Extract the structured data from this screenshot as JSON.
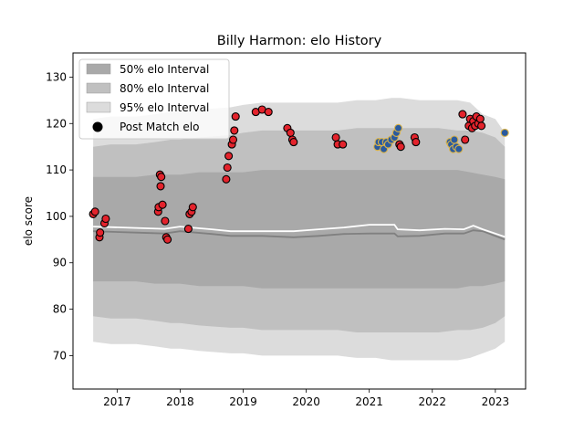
{
  "chart_data": {
    "type": "scatter",
    "title": "Billy Harmon: elo History",
    "xlabel": "",
    "ylabel": "elo score",
    "xlim": [
      2016.3,
      2023.48
    ],
    "ylim": [
      62.8,
      135.2
    ],
    "xticks": [
      2017,
      2018,
      2019,
      2020,
      2021,
      2022,
      2023
    ],
    "yticks": [
      70,
      80,
      90,
      100,
      110,
      120,
      130
    ],
    "grid": false,
    "legend_position": "upper left",
    "legend": [
      {
        "label": "50% elo Interval",
        "kind": "band",
        "color": "#a9a9a9"
      },
      {
        "label": "80% elo Interval",
        "kind": "band",
        "color": "#c0c0c0"
      },
      {
        "label": "95% elo Interval",
        "kind": "band",
        "color": "#dcdcdc"
      },
      {
        "label": "Post Match elo",
        "kind": "marker",
        "color": "#000000"
      }
    ],
    "colors": {
      "band50": "#a9a9a9",
      "band80": "#c0c0c0",
      "band95": "#dcdcdc",
      "median_line": "#808080",
      "mean_line": "#ffffff",
      "win": "#e3232c",
      "loss": "#2a5a9e",
      "win_edge": "#000000",
      "loss_edge": "#d8b24a"
    },
    "bands": {
      "x": [
        2016.62,
        2016.9,
        2017.3,
        2017.6,
        2017.85,
        2018.0,
        2018.3,
        2018.8,
        2019.0,
        2019.3,
        2019.7,
        2020.0,
        2020.5,
        2020.8,
        2021.1,
        2021.35,
        2021.5,
        2021.8,
        2022.1,
        2022.4,
        2022.6,
        2022.8,
        2023.0,
        2023.15
      ],
      "lo95": [
        73,
        72.5,
        72.5,
        72,
        71.5,
        71.5,
        71,
        70.5,
        70.5,
        70,
        70,
        70,
        70,
        69.5,
        69.5,
        69,
        69,
        69,
        69,
        69,
        69.5,
        70.5,
        71.5,
        73
      ],
      "hi95": [
        121,
        121.5,
        121.5,
        122,
        122.5,
        122.5,
        123,
        123.5,
        124,
        124.5,
        124.5,
        124.5,
        124.5,
        125,
        125,
        125.5,
        125.5,
        125,
        125,
        125,
        124.5,
        122,
        121,
        118
      ],
      "lo80": [
        78.5,
        78,
        78,
        77.5,
        77,
        77,
        76.5,
        76,
        76,
        75.5,
        75.5,
        75.5,
        75.5,
        75,
        75,
        75,
        75,
        75,
        75,
        75.5,
        75.5,
        76,
        77,
        78.5
      ],
      "hi80": [
        115,
        115.5,
        115.5,
        116,
        116.5,
        116.5,
        117,
        117.5,
        118,
        118.5,
        118.5,
        118.5,
        118.5,
        119,
        119,
        119,
        119,
        119,
        119,
        118.5,
        118.5,
        118,
        117,
        115
      ],
      "lo50": [
        86,
        86,
        86,
        85.5,
        85.5,
        85.5,
        85,
        85,
        85,
        84.5,
        84.5,
        84.5,
        84.5,
        84.5,
        84.5,
        84.5,
        84.5,
        84.5,
        84.5,
        84.5,
        85,
        85,
        85.5,
        86
      ],
      "hi50": [
        108.5,
        108.5,
        108.5,
        109,
        109,
        109,
        109.5,
        109.5,
        109.5,
        110,
        110,
        110,
        110,
        110,
        110,
        110,
        110,
        110,
        110,
        110,
        109.5,
        109,
        108.5,
        108
      ]
    },
    "median_line": {
      "x": [
        2016.62,
        2017.3,
        2017.75,
        2018.0,
        2018.5,
        2018.8,
        2019.3,
        2019.8,
        2020.2,
        2020.6,
        2021.0,
        2021.4,
        2021.45,
        2021.8,
        2022.2,
        2022.5,
        2022.65,
        2022.8,
        2023.15
      ],
      "y": [
        96.8,
        96.5,
        96.3,
        96.8,
        96.2,
        95.8,
        95.8,
        95.5,
        95.8,
        96.2,
        96.3,
        96.3,
        95.7,
        95.8,
        96.3,
        96.3,
        97.0,
        96.8,
        95.0
      ]
    },
    "mean_line": {
      "x": [
        2016.62,
        2017.3,
        2017.75,
        2018.0,
        2018.5,
        2018.8,
        2019.3,
        2019.8,
        2020.2,
        2020.6,
        2021.0,
        2021.4,
        2021.45,
        2021.8,
        2022.2,
        2022.5,
        2022.65,
        2022.8,
        2023.15
      ],
      "y": [
        97.8,
        97.5,
        97.3,
        97.8,
        97.2,
        96.8,
        96.8,
        96.8,
        97.2,
        97.6,
        98.2,
        98.2,
        97.2,
        97.0,
        97.3,
        97.2,
        98.0,
        97.2,
        95.6
      ]
    },
    "points": [
      {
        "x": 2016.62,
        "y": 100.5,
        "result": "win"
      },
      {
        "x": 2016.65,
        "y": 101.0,
        "result": "win"
      },
      {
        "x": 2016.72,
        "y": 95.5,
        "result": "win"
      },
      {
        "x": 2016.73,
        "y": 96.5,
        "result": "win"
      },
      {
        "x": 2016.8,
        "y": 98.5,
        "result": "win"
      },
      {
        "x": 2016.82,
        "y": 99.5,
        "result": "win"
      },
      {
        "x": 2017.65,
        "y": 101.0,
        "result": "win"
      },
      {
        "x": 2017.66,
        "y": 102.0,
        "result": "win"
      },
      {
        "x": 2017.68,
        "y": 109.0,
        "result": "win"
      },
      {
        "x": 2017.69,
        "y": 106.5,
        "result": "win"
      },
      {
        "x": 2017.7,
        "y": 108.5,
        "result": "win"
      },
      {
        "x": 2017.72,
        "y": 102.5,
        "result": "win"
      },
      {
        "x": 2017.76,
        "y": 99.0,
        "result": "win"
      },
      {
        "x": 2017.78,
        "y": 95.5,
        "result": "win"
      },
      {
        "x": 2017.8,
        "y": 95.0,
        "result": "win"
      },
      {
        "x": 2018.13,
        "y": 97.3,
        "result": "win"
      },
      {
        "x": 2018.15,
        "y": 100.5,
        "result": "win"
      },
      {
        "x": 2018.18,
        "y": 101.0,
        "result": "win"
      },
      {
        "x": 2018.2,
        "y": 102.0,
        "result": "win"
      },
      {
        "x": 2018.73,
        "y": 108.0,
        "result": "win"
      },
      {
        "x": 2018.75,
        "y": 110.5,
        "result": "win"
      },
      {
        "x": 2018.77,
        "y": 113.0,
        "result": "win"
      },
      {
        "x": 2018.82,
        "y": 115.5,
        "result": "win"
      },
      {
        "x": 2018.84,
        "y": 116.5,
        "result": "win"
      },
      {
        "x": 2018.86,
        "y": 118.5,
        "result": "win"
      },
      {
        "x": 2018.88,
        "y": 121.5,
        "result": "win"
      },
      {
        "x": 2019.2,
        "y": 122.5,
        "result": "win"
      },
      {
        "x": 2019.3,
        "y": 123.0,
        "result": "win"
      },
      {
        "x": 2019.4,
        "y": 122.5,
        "result": "win"
      },
      {
        "x": 2019.7,
        "y": 119.0,
        "result": "win"
      },
      {
        "x": 2019.75,
        "y": 118.0,
        "result": "win"
      },
      {
        "x": 2019.78,
        "y": 116.5,
        "result": "win"
      },
      {
        "x": 2019.8,
        "y": 116.0,
        "result": "win"
      },
      {
        "x": 2020.47,
        "y": 117.0,
        "result": "win"
      },
      {
        "x": 2020.5,
        "y": 115.5,
        "result": "win"
      },
      {
        "x": 2020.58,
        "y": 115.5,
        "result": "win"
      },
      {
        "x": 2021.13,
        "y": 115.0,
        "result": "loss"
      },
      {
        "x": 2021.15,
        "y": 116.0,
        "result": "loss"
      },
      {
        "x": 2021.2,
        "y": 116.0,
        "result": "loss"
      },
      {
        "x": 2021.23,
        "y": 114.5,
        "result": "loss"
      },
      {
        "x": 2021.27,
        "y": 116.0,
        "result": "loss"
      },
      {
        "x": 2021.3,
        "y": 115.5,
        "result": "loss"
      },
      {
        "x": 2021.35,
        "y": 116.5,
        "result": "loss"
      },
      {
        "x": 2021.4,
        "y": 117.0,
        "result": "loss"
      },
      {
        "x": 2021.43,
        "y": 118.0,
        "result": "loss"
      },
      {
        "x": 2021.46,
        "y": 119.0,
        "result": "loss"
      },
      {
        "x": 2021.48,
        "y": 115.5,
        "result": "win"
      },
      {
        "x": 2021.5,
        "y": 115.0,
        "result": "win"
      },
      {
        "x": 2021.72,
        "y": 117.0,
        "result": "win"
      },
      {
        "x": 2021.74,
        "y": 116.0,
        "result": "win"
      },
      {
        "x": 2022.28,
        "y": 116.0,
        "result": "loss"
      },
      {
        "x": 2022.3,
        "y": 115.5,
        "result": "loss"
      },
      {
        "x": 2022.33,
        "y": 114.5,
        "result": "loss"
      },
      {
        "x": 2022.35,
        "y": 116.5,
        "result": "loss"
      },
      {
        "x": 2022.38,
        "y": 115.0,
        "result": "loss"
      },
      {
        "x": 2022.42,
        "y": 114.5,
        "result": "loss"
      },
      {
        "x": 2022.48,
        "y": 122.0,
        "result": "win"
      },
      {
        "x": 2022.52,
        "y": 116.5,
        "result": "win"
      },
      {
        "x": 2022.58,
        "y": 119.5,
        "result": "win"
      },
      {
        "x": 2022.6,
        "y": 121.0,
        "result": "win"
      },
      {
        "x": 2022.63,
        "y": 119.0,
        "result": "win"
      },
      {
        "x": 2022.65,
        "y": 120.5,
        "result": "win"
      },
      {
        "x": 2022.68,
        "y": 119.5,
        "result": "win"
      },
      {
        "x": 2022.7,
        "y": 121.5,
        "result": "win"
      },
      {
        "x": 2022.73,
        "y": 120.0,
        "result": "win"
      },
      {
        "x": 2022.76,
        "y": 121.0,
        "result": "win"
      },
      {
        "x": 2022.78,
        "y": 119.5,
        "result": "win"
      },
      {
        "x": 2023.15,
        "y": 118.0,
        "result": "loss"
      }
    ]
  }
}
